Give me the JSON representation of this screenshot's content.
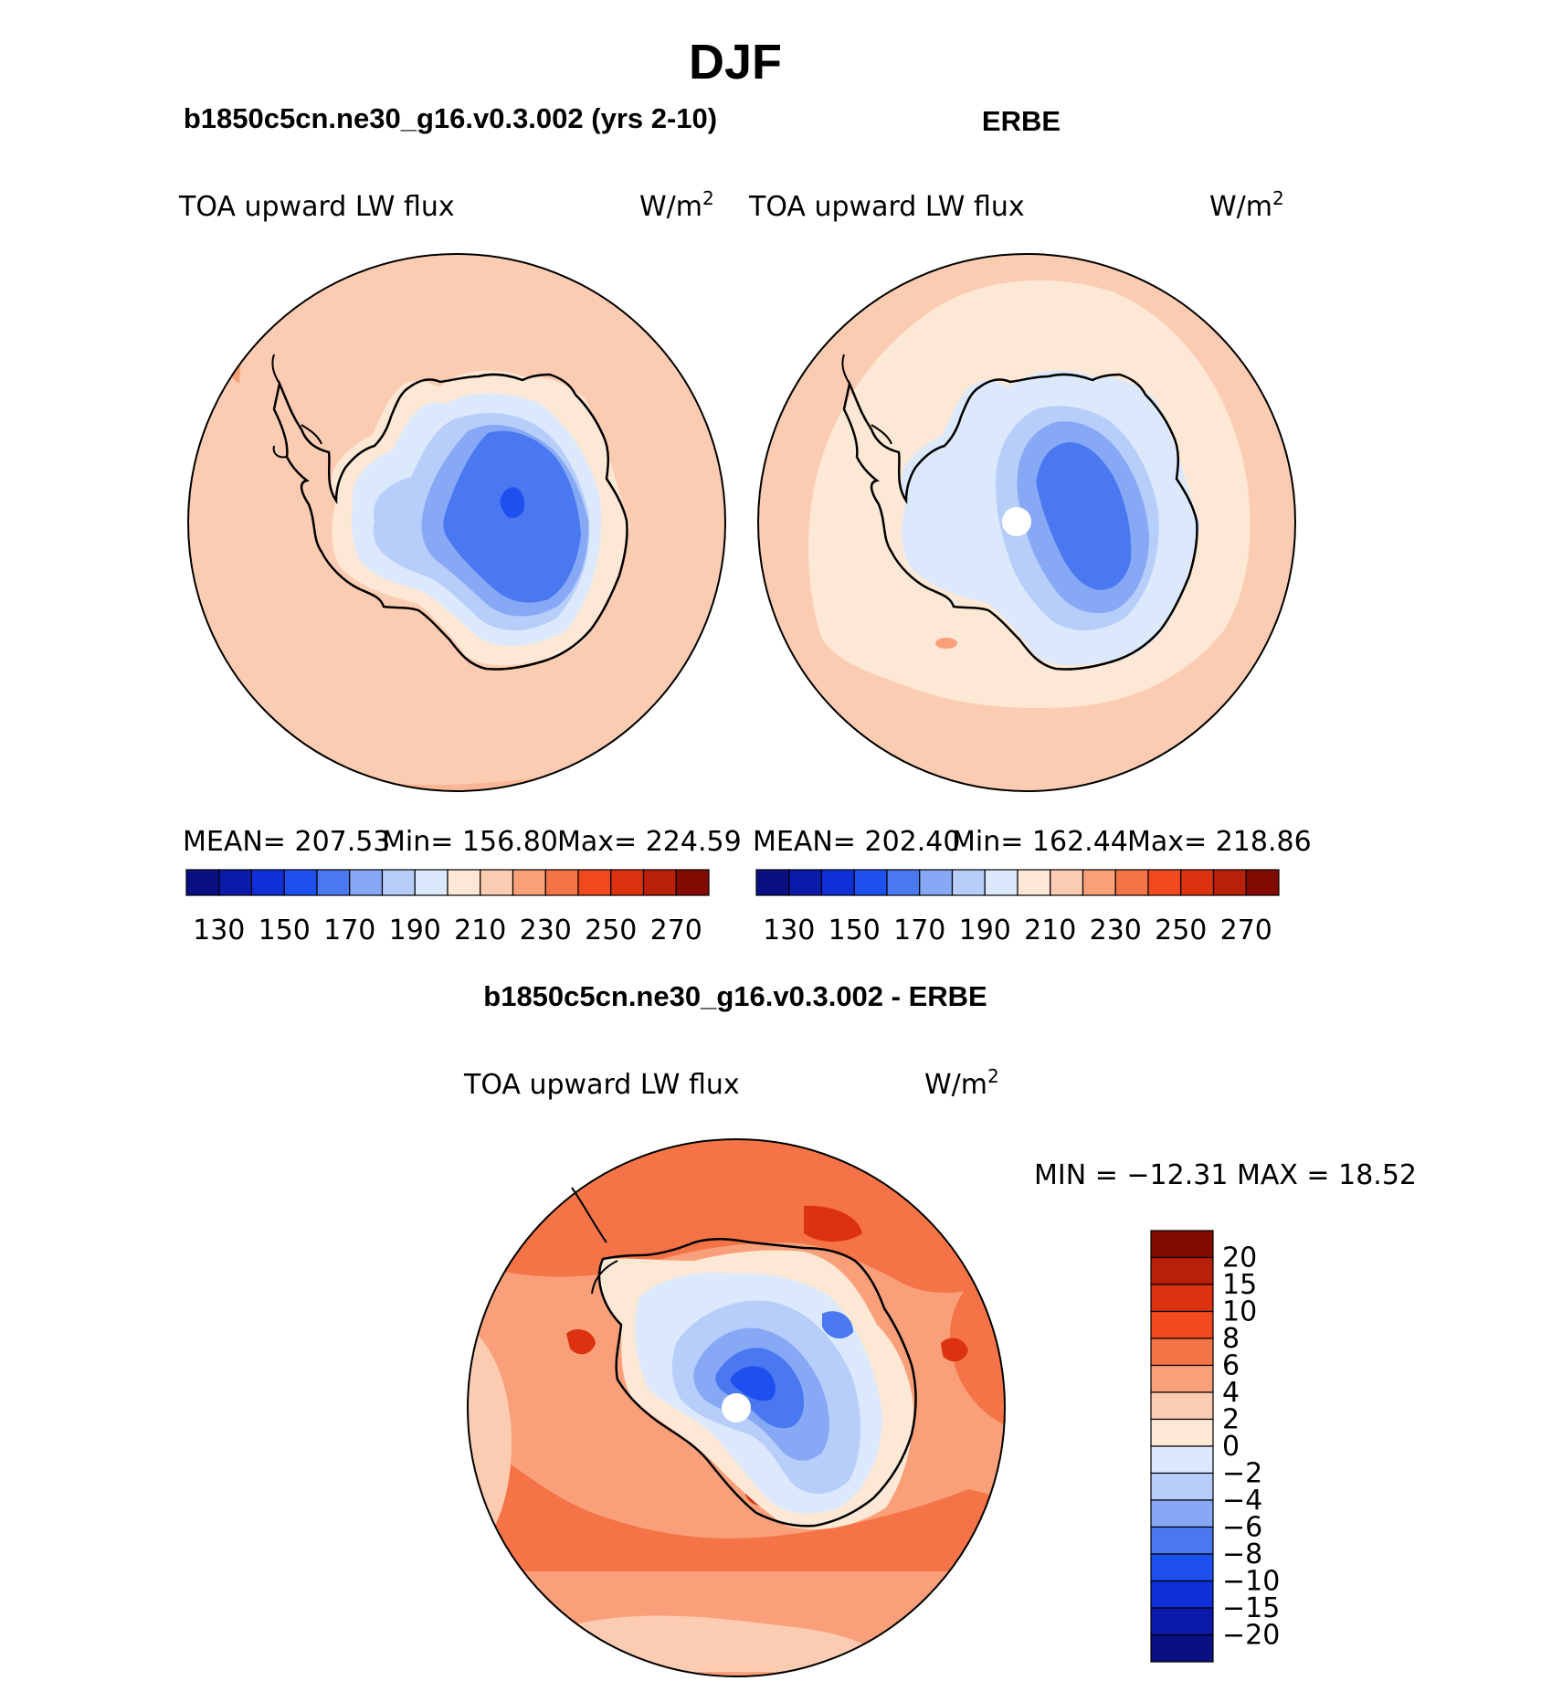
{
  "season": "DJF",
  "panels": [
    {
      "title": "b1850c5cn.ne30_g16.v0.3.002 (yrs 2-10)",
      "variable": "TOA upward LW flux",
      "units_base": "W/m",
      "units_exp": "2",
      "stats": {
        "mean": "MEAN= 207.53",
        "min": "Min= 156.80",
        "max": "Max= 224.59"
      },
      "colorbar": {
        "colors": [
          "#0a0f82",
          "#0b1aa8",
          "#0f30d6",
          "#1e50f0",
          "#4a78f0",
          "#86a8f5",
          "#b7cdfa",
          "#dce9fc",
          "#fde8d6",
          "#fcccb2",
          "#f9a07a",
          "#f57447",
          "#f24a1c",
          "#dd3210",
          "#b82008",
          "#820a00"
        ],
        "ticks": [
          "130",
          "150",
          "170",
          "190",
          "210",
          "230",
          "250",
          "270"
        ]
      }
    },
    {
      "title": "ERBE",
      "variable": "TOA upward LW flux",
      "units_base": "W/m",
      "units_exp": "2",
      "stats": {
        "mean": "MEAN= 202.40",
        "min": "Min= 162.44",
        "max": "Max= 218.86"
      },
      "colorbar": {
        "colors": [
          "#0a0f82",
          "#0b1aa8",
          "#0f30d6",
          "#1e50f0",
          "#4a78f0",
          "#86a8f5",
          "#b7cdfa",
          "#dce9fc",
          "#fde8d6",
          "#fcccb2",
          "#f9a07a",
          "#f57447",
          "#f24a1c",
          "#dd3210",
          "#b82008",
          "#820a00"
        ],
        "ticks": [
          "130",
          "150",
          "170",
          "190",
          "210",
          "230",
          "250",
          "270"
        ]
      }
    },
    {
      "title": "b1850c5cn.ne30_g16.v0.3.002 - ERBE",
      "variable": "TOA upward LW flux",
      "units_base": "W/m",
      "units_exp": "2",
      "stats": {
        "minmax": "MIN = −12.31 MAX =  18.52"
      },
      "colorbar": {
        "colors": [
          "#820a00",
          "#b82008",
          "#dd3210",
          "#f24a1c",
          "#f57447",
          "#f9a07a",
          "#fcccb2",
          "#fde8d6",
          "#dce9fc",
          "#b7cdfa",
          "#86a8f5",
          "#4a78f0",
          "#1e50f0",
          "#0f30d6",
          "#0b1aa8",
          "#0a0f82"
        ],
        "ticks": [
          "20",
          "15",
          "10",
          "8",
          "6",
          "4",
          "2",
          "0",
          "−2",
          "−4",
          "−6",
          "−8",
          "−10",
          "−15",
          "−20"
        ]
      }
    }
  ]
}
